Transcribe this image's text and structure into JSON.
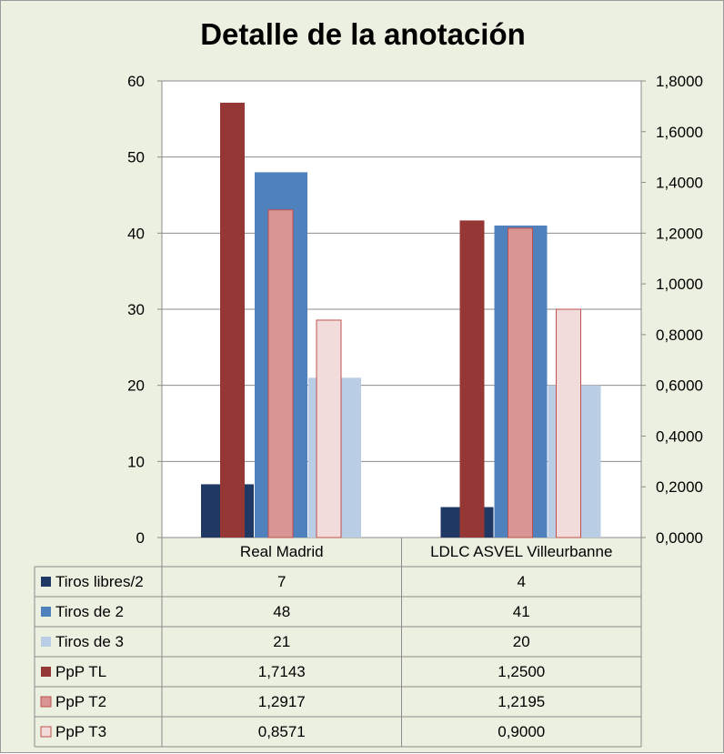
{
  "chart_data": {
    "type": "bar",
    "title": "Detalle de la anotación",
    "categories": [
      "Real Madrid",
      "LDLC ASVEL Villeurbanne"
    ],
    "y_left": {
      "ylim": [
        0,
        60
      ],
      "ticks": [
        "0",
        "10",
        "20",
        "30",
        "40",
        "50",
        "60"
      ]
    },
    "y_right": {
      "ylim": [
        0,
        1.8
      ],
      "ticks": [
        "0,0000",
        "0,2000",
        "0,4000",
        "0,6000",
        "0,8000",
        "1,0000",
        "1,2000",
        "1,4000",
        "1,6000",
        "1,8000"
      ]
    },
    "legend_placement": "data-table",
    "series": [
      {
        "name": "Tiros libres/2",
        "axis": "left",
        "values": [
          7,
          4
        ],
        "labels": [
          "7",
          "4"
        ],
        "color": "#1f3864"
      },
      {
        "name": "Tiros de 2",
        "axis": "left",
        "values": [
          48,
          41
        ],
        "labels": [
          "48",
          "41"
        ],
        "color": "#4f81bd"
      },
      {
        "name": "Tiros de 3",
        "axis": "left",
        "values": [
          21,
          20
        ],
        "labels": [
          "21",
          "20"
        ],
        "color": "#b9cde5"
      },
      {
        "name": "PpP TL",
        "axis": "right",
        "values": [
          1.7143,
          1.25
        ],
        "labels": [
          "1,7143",
          "1,2500"
        ],
        "color": "#953735"
      },
      {
        "name": "PpP T2",
        "axis": "right",
        "values": [
          1.2917,
          1.2195
        ],
        "labels": [
          "1,2917",
          "1,2195"
        ],
        "color": "#d99594"
      },
      {
        "name": "PpP T3",
        "axis": "right",
        "values": [
          0.8571,
          0.9
        ],
        "labels": [
          "0,8571",
          "0,9000"
        ],
        "color": "#f2dcdb"
      }
    ]
  }
}
